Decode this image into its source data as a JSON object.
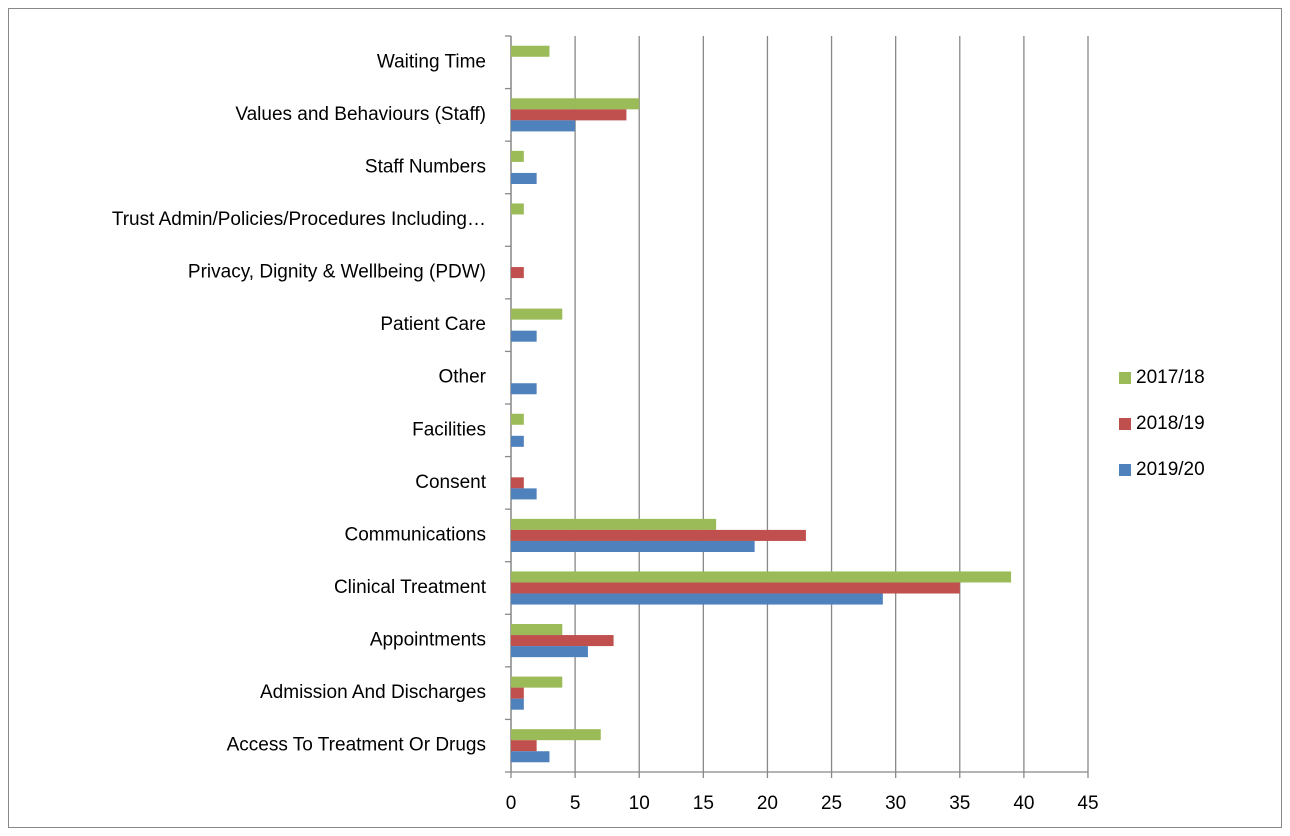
{
  "chart_data": {
    "type": "hbar",
    "categories": [
      "Waiting Time",
      "Values and Behaviours (Staff)",
      "Staff Numbers",
      "Trust Admin/Policies/Procedures Including…",
      "Privacy, Dignity & Wellbeing (PDW)",
      "Patient Care",
      "Other",
      "Facilities",
      "Consent",
      "Communications",
      "Clinical Treatment",
      "Appointments",
      "Admission And Discharges",
      "Access To Treatment Or Drugs"
    ],
    "series": [
      {
        "name": "2017/18",
        "color": "#9bbb59",
        "values": [
          3,
          10,
          1,
          1,
          0,
          4,
          0,
          1,
          0,
          16,
          39,
          4,
          4,
          7
        ]
      },
      {
        "name": "2018/19",
        "color": "#c0504d",
        "values": [
          0,
          9,
          0,
          0,
          1,
          0,
          0,
          0,
          1,
          23,
          35,
          8,
          1,
          2
        ]
      },
      {
        "name": "2019/20",
        "color": "#4f81bd",
        "values": [
          0,
          5,
          2,
          0,
          0,
          2,
          2,
          1,
          2,
          19,
          29,
          6,
          1,
          3
        ]
      }
    ],
    "xlim": [
      0,
      45
    ],
    "xticks": [
      0,
      5,
      10,
      15,
      20,
      25,
      30,
      35,
      40,
      45
    ],
    "grid": true,
    "legend": "right"
  }
}
